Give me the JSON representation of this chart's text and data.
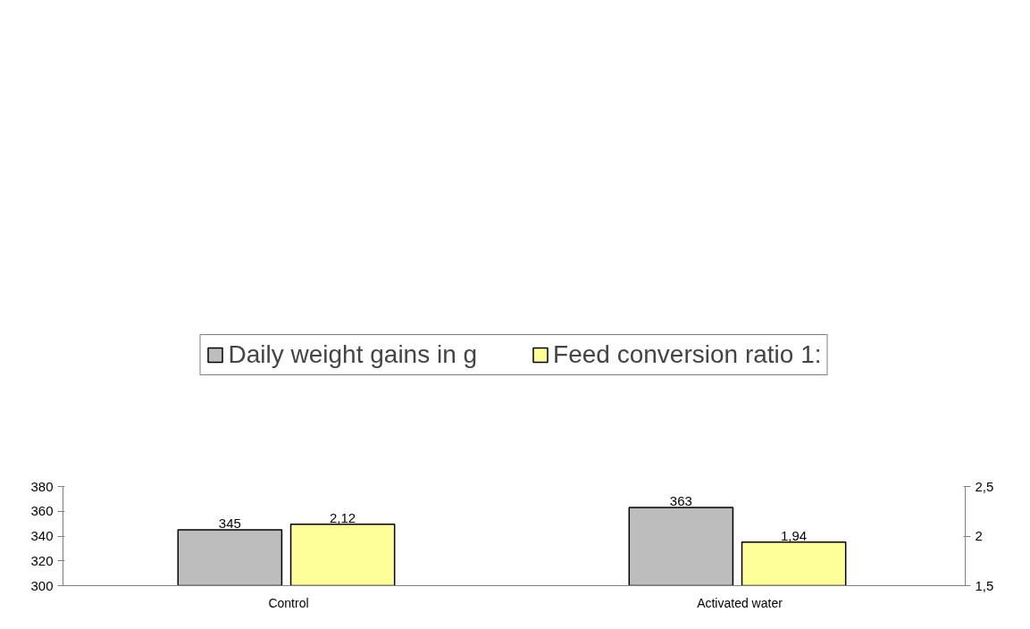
{
  "chart_data": {
    "type": "bar",
    "categories": [
      "Control",
      "Activated water"
    ],
    "series": [
      {
        "name": "Daily weight gains in g",
        "color": "#bdbdbd",
        "values": [
          345,
          363
        ],
        "value_labels": [
          "345",
          "363"
        ]
      },
      {
        "name": "Feed conversion ratio 1:",
        "color": "#ffff99",
        "values": [
          2.12,
          1.94
        ],
        "axis": "y2",
        "value_labels": [
          "2,12",
          "1,94"
        ]
      }
    ],
    "ylim": [
      300,
      380
    ],
    "yticks": [
      300,
      320,
      340,
      360,
      380
    ],
    "y2lim": [
      1.5,
      2.5
    ],
    "y2ticks": [
      {
        "value": 1.5,
        "label": "1,5"
      },
      2,
      {
        "value": 2.5,
        "label": "2,5"
      }
    ],
    "grid": false,
    "legend": "top"
  }
}
